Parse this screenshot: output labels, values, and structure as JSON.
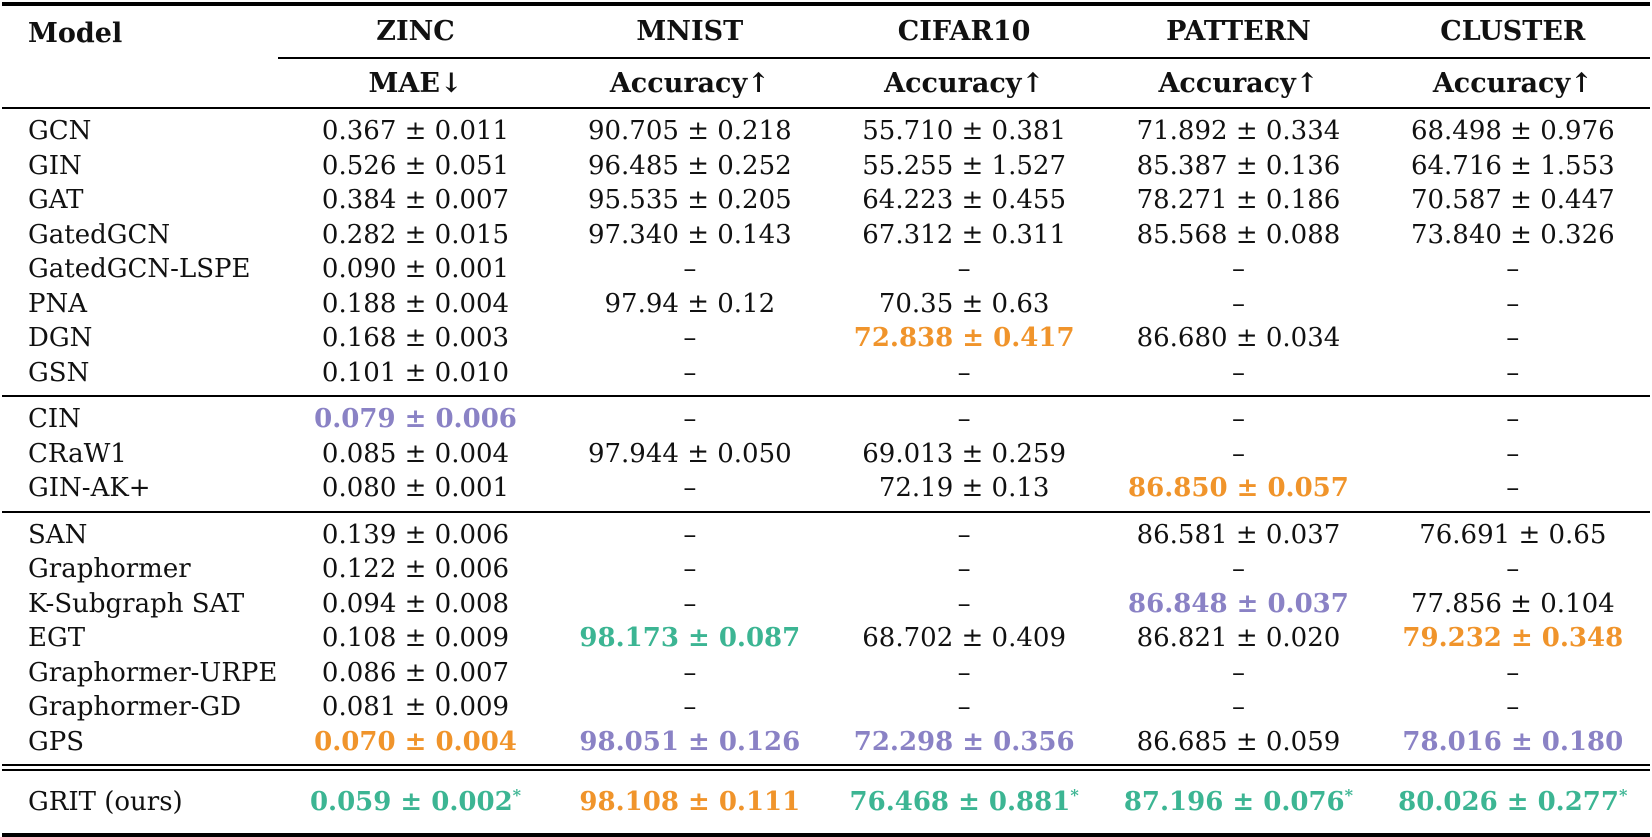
{
  "colors": {
    "rank_first": "#3CB593",
    "rank_second": "#F0942B",
    "rank_third": "#8A82C5",
    "text": "#111111"
  },
  "table": {
    "model_header": "Model",
    "dataset_headers": [
      "ZINC",
      "MNIST",
      "CIFAR10",
      "PATTERN",
      "CLUSTER"
    ],
    "metric_headers": [
      "MAE↓",
      "Accuracy↑",
      "Accuracy↑",
      "Accuracy↑",
      "Accuracy↑"
    ],
    "empty_marker": "–",
    "star_marker": "*",
    "groups": [
      {
        "rows": [
          {
            "model": "GCN",
            "cells": [
              {
                "text": "0.367 ± 0.011"
              },
              {
                "text": "90.705 ± 0.218"
              },
              {
                "text": "55.710 ± 0.381"
              },
              {
                "text": "71.892 ± 0.334"
              },
              {
                "text": "68.498 ± 0.976"
              }
            ]
          },
          {
            "model": "GIN",
            "cells": [
              {
                "text": "0.526 ± 0.051"
              },
              {
                "text": "96.485 ± 0.252"
              },
              {
                "text": "55.255 ± 1.527"
              },
              {
                "text": "85.387 ± 0.136"
              },
              {
                "text": "64.716 ± 1.553"
              }
            ]
          },
          {
            "model": "GAT",
            "cells": [
              {
                "text": "0.384 ± 0.007"
              },
              {
                "text": "95.535 ± 0.205"
              },
              {
                "text": "64.223 ± 0.455"
              },
              {
                "text": "78.271 ± 0.186"
              },
              {
                "text": "70.587 ± 0.447"
              }
            ]
          },
          {
            "model": "GatedGCN",
            "cells": [
              {
                "text": "0.282 ± 0.015"
              },
              {
                "text": "97.340 ± 0.143"
              },
              {
                "text": "67.312 ± 0.311"
              },
              {
                "text": "85.568 ± 0.088"
              },
              {
                "text": "73.840 ± 0.326"
              }
            ]
          },
          {
            "model": "GatedGCN-LSPE",
            "cells": [
              {
                "text": "0.090 ± 0.001"
              },
              {
                "text": "–"
              },
              {
                "text": "–"
              },
              {
                "text": "–"
              },
              {
                "text": "–"
              }
            ]
          },
          {
            "model": "PNA",
            "cells": [
              {
                "text": "0.188 ± 0.004"
              },
              {
                "text": "97.94 ± 0.12"
              },
              {
                "text": "70.35 ± 0.63"
              },
              {
                "text": "–"
              },
              {
                "text": "–"
              }
            ]
          },
          {
            "model": "DGN",
            "cells": [
              {
                "text": "0.168 ± 0.003"
              },
              {
                "text": "–"
              },
              {
                "text": "72.838 ± 0.417",
                "rank": "second"
              },
              {
                "text": "86.680 ± 0.034"
              },
              {
                "text": "–"
              }
            ]
          },
          {
            "model": "GSN",
            "cells": [
              {
                "text": "0.101 ± 0.010"
              },
              {
                "text": "–"
              },
              {
                "text": "–"
              },
              {
                "text": "–"
              },
              {
                "text": "–"
              }
            ]
          }
        ]
      },
      {
        "rows": [
          {
            "model": "CIN",
            "cells": [
              {
                "text": "0.079 ± 0.006",
                "rank": "third"
              },
              {
                "text": "–"
              },
              {
                "text": "–"
              },
              {
                "text": "–"
              },
              {
                "text": "–"
              }
            ]
          },
          {
            "model": "CRaW1",
            "cells": [
              {
                "text": "0.085 ± 0.004"
              },
              {
                "text": "97.944 ± 0.050"
              },
              {
                "text": "69.013 ± 0.259"
              },
              {
                "text": "–"
              },
              {
                "text": "–"
              }
            ]
          },
          {
            "model": "GIN-AK+",
            "cells": [
              {
                "text": "0.080 ± 0.001"
              },
              {
                "text": "–"
              },
              {
                "text": "72.19 ± 0.13"
              },
              {
                "text": "86.850 ± 0.057",
                "rank": "second"
              },
              {
                "text": "–"
              }
            ]
          }
        ]
      },
      {
        "rows": [
          {
            "model": "SAN",
            "cells": [
              {
                "text": "0.139 ± 0.006"
              },
              {
                "text": "–"
              },
              {
                "text": "–"
              },
              {
                "text": "86.581 ± 0.037"
              },
              {
                "text": "76.691 ± 0.65"
              }
            ]
          },
          {
            "model": "Graphormer",
            "cells": [
              {
                "text": "0.122 ± 0.006"
              },
              {
                "text": "–"
              },
              {
                "text": "–"
              },
              {
                "text": "–"
              },
              {
                "text": "–"
              }
            ]
          },
          {
            "model": "K-Subgraph SAT",
            "cells": [
              {
                "text": "0.094 ± 0.008"
              },
              {
                "text": "–"
              },
              {
                "text": "–"
              },
              {
                "text": "86.848 ± 0.037",
                "rank": "third"
              },
              {
                "text": "77.856 ± 0.104"
              }
            ]
          },
          {
            "model": "EGT",
            "cells": [
              {
                "text": "0.108 ± 0.009"
              },
              {
                "text": "98.173 ± 0.087",
                "rank": "first"
              },
              {
                "text": "68.702 ± 0.409"
              },
              {
                "text": "86.821 ± 0.020"
              },
              {
                "text": "79.232 ± 0.348",
                "rank": "second"
              }
            ]
          },
          {
            "model": "Graphormer-URPE",
            "cells": [
              {
                "text": "0.086 ± 0.007"
              },
              {
                "text": "–"
              },
              {
                "text": "–"
              },
              {
                "text": "–"
              },
              {
                "text": "–"
              }
            ]
          },
          {
            "model": "Graphormer-GD",
            "cells": [
              {
                "text": "0.081 ± 0.009"
              },
              {
                "text": "–"
              },
              {
                "text": "–"
              },
              {
                "text": "–"
              },
              {
                "text": "–"
              }
            ]
          },
          {
            "model": "GPS",
            "cells": [
              {
                "text": "0.070 ± 0.004",
                "rank": "second"
              },
              {
                "text": "98.051 ± 0.126",
                "rank": "third"
              },
              {
                "text": "72.298 ± 0.356",
                "rank": "third"
              },
              {
                "text": "86.685 ± 0.059"
              },
              {
                "text": "78.016 ± 0.180",
                "rank": "third"
              }
            ]
          }
        ]
      },
      {
        "final": true,
        "rows": [
          {
            "model": "GRIT (ours)",
            "cells": [
              {
                "text": "0.059 ± 0.002",
                "rank": "first",
                "star": true
              },
              {
                "text": "98.108 ± 0.111",
                "rank": "second"
              },
              {
                "text": "76.468 ± 0.881",
                "rank": "first",
                "star": true
              },
              {
                "text": "87.196 ± 0.076",
                "rank": "first",
                "star": true
              },
              {
                "text": "80.026 ± 0.277",
                "rank": "first",
                "star": true
              }
            ]
          }
        ]
      }
    ]
  }
}
